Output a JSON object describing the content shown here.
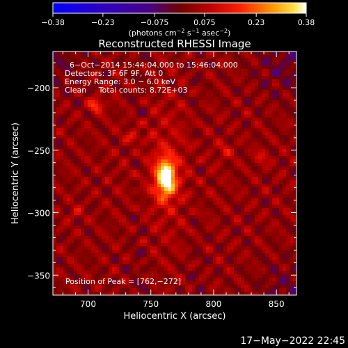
{
  "chart_data": {
    "type": "heatmap",
    "title": "Reconstructed RHESSI Image",
    "xlabel": "Heliocentric X (arcsec)",
    "ylabel": "Heliocentric Y (arcsec)",
    "xlim": [
      672,
      866
    ],
    "ylim": [
      -366,
      -171
    ],
    "x_ticks": [
      700,
      750,
      800,
      850
    ],
    "x_tick_labels": [
      "700",
      "750",
      "800",
      "850"
    ],
    "y_ticks": [
      -200,
      -250,
      -300,
      -350
    ],
    "y_tick_labels": [
      "−200",
      "−250",
      "−300",
      "−350"
    ],
    "colorbar": {
      "range": [
        -0.38,
        0.38
      ],
      "ticks": [
        -0.38,
        -0.23,
        -0.075,
        0.075,
        0.23,
        0.38
      ],
      "tick_labels": [
        "−0.38",
        "−0.23",
        "−0.075",
        "0.075",
        "0.23",
        "0.38"
      ],
      "unit_prefix": "(photons cm",
      "unit_exp1": "−2",
      "unit_mid": " s",
      "unit_exp2": "−1",
      "unit_mid2": " asec",
      "unit_exp3": "−2",
      "unit_suffix": ")"
    },
    "annotations": [
      "6−Oct−2014 15:44:04.000 to 15:46:04.000",
      "Detectors: 3F 6F 9F, Att 0",
      "Energy Range: 3.0 − 6.0 keV",
      "Clean     Total counts: 8.72E+03"
    ],
    "peak_label": "Position of Peak = [762,−272]",
    "peak": {
      "x": 762,
      "y": -272,
      "value": 0.38
    },
    "secondary_sources": [
      {
        "x": 706,
        "y": -214,
        "value": 0.16
      },
      {
        "x": 736,
        "y": -238,
        "value": 0.09
      },
      {
        "x": 810,
        "y": -250,
        "value": 0.08
      },
      {
        "x": 838,
        "y": -256,
        "value": 0.08
      },
      {
        "x": 690,
        "y": -300,
        "value": 0.06
      }
    ],
    "timestamp": "17−May−2022 22:45"
  }
}
